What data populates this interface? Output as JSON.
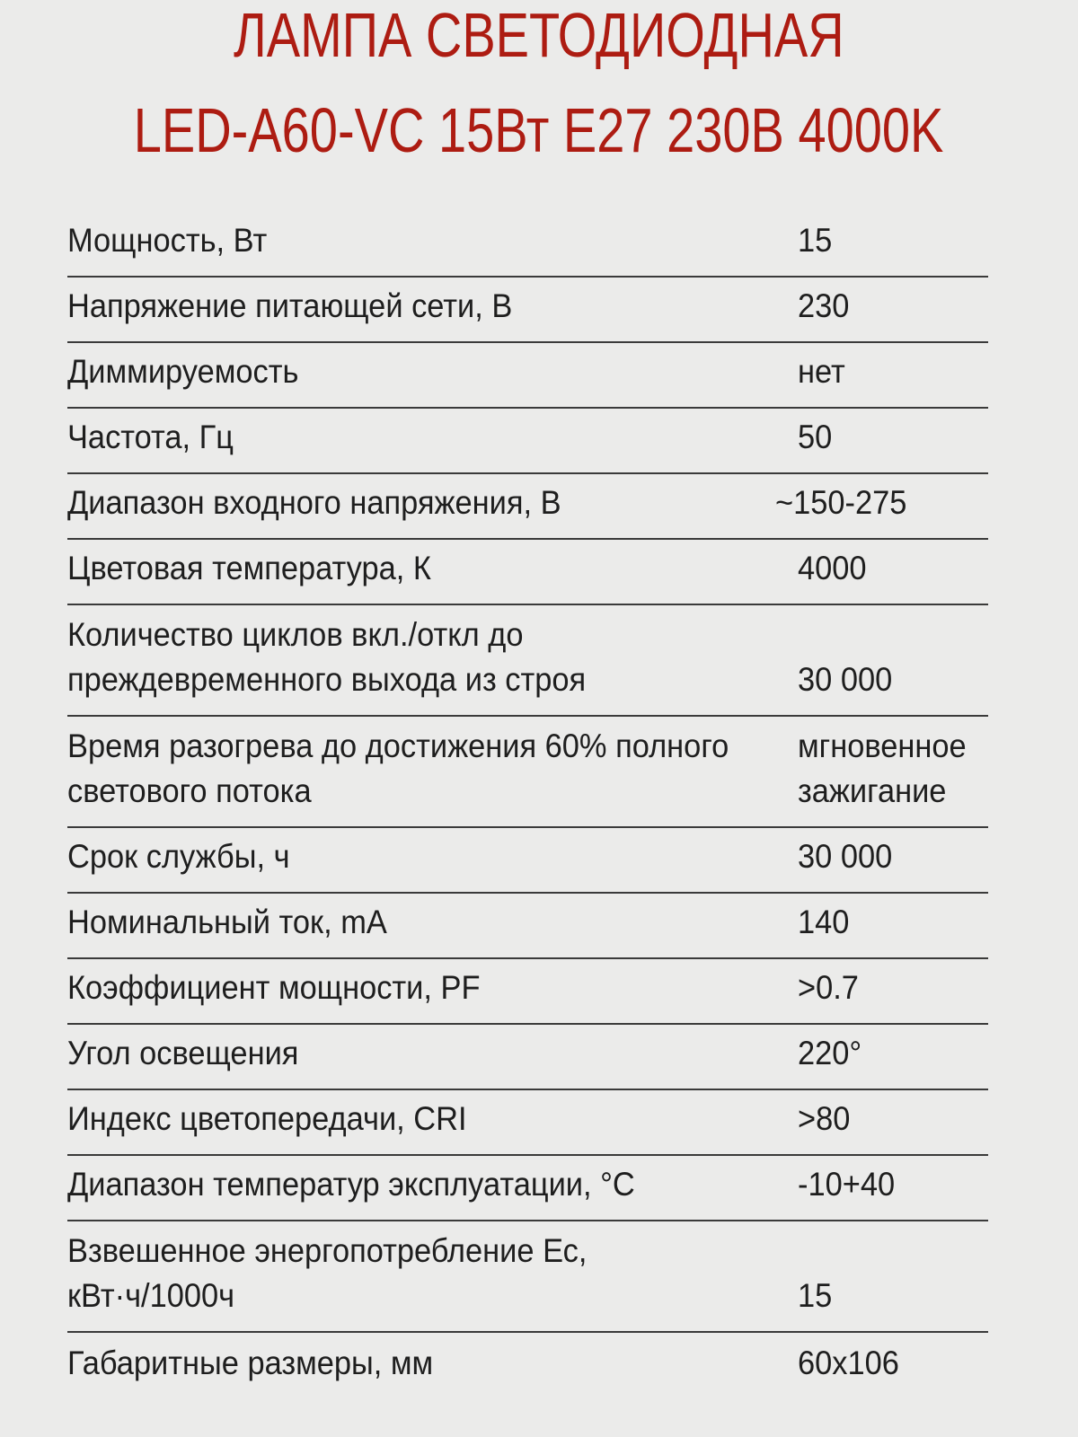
{
  "title": {
    "line1": "ЛАМПА СВЕТОДИОДНАЯ",
    "line2": "LED-A60-VC 15Вт E27 230В 4000K"
  },
  "colors": {
    "title": "#ad1c12",
    "text": "#1e1e1e",
    "background": "#ebebea"
  },
  "specs": [
    {
      "label": "Мощность, Вт",
      "value": "15"
    },
    {
      "label": "Напряжение питающей сети, В",
      "value": "230"
    },
    {
      "label": "Диммируемость",
      "value": "нет"
    },
    {
      "label": "Частота, Гц",
      "value": "50"
    },
    {
      "label": "Диапазон входного напряжения, В",
      "value": "~150-275"
    },
    {
      "label": "Цветовая температура, К",
      "value": "4000"
    },
    {
      "label": "Количество циклов вкл./откл до преждевременного выхода из строя",
      "value": "30 000"
    },
    {
      "label": "Время разогрева до достижения 60% полного светового потока",
      "value": "мгновенное зажигание"
    },
    {
      "label": "Срок службы, ч",
      "value": "30 000"
    },
    {
      "label": "Номинальный ток, mA",
      "value": "140"
    },
    {
      "label": "Коэффициент мощности, PF",
      "value": ">0.7"
    },
    {
      "label": "Угол освещения",
      "value": "220°"
    },
    {
      "label": "Индекс цветопередачи, CRI",
      "value": ">80"
    },
    {
      "label": "Диапазон температур эксплуатации, °С",
      "value": "-10+40"
    },
    {
      "label": "Взвешенное энергопотребление Ес, кВт·ч/1000ч",
      "value": "15"
    },
    {
      "label": "Габаритные размеры, мм",
      "value": "60х106"
    }
  ]
}
